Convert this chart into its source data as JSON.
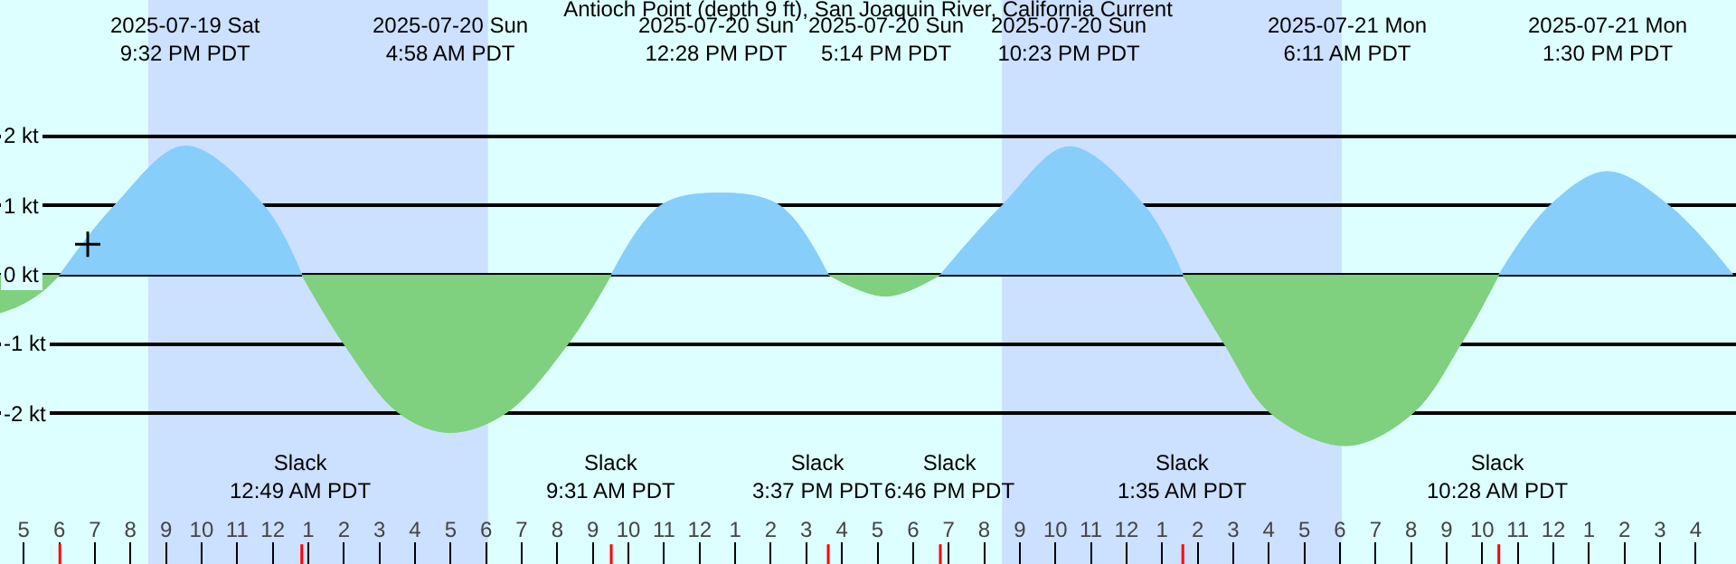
{
  "chart_data": {
    "type": "area",
    "title": "Antioch Point (depth 9 ft), San Joaquin River, California Current",
    "xlim": [
      "2025-07-19T16:20",
      "2025-07-21T17:08"
    ],
    "ylim": [
      -4.18,
      3.97
    ],
    "xticks": [
      {
        "value": "2025-07-19T17:00",
        "label": "5"
      },
      {
        "value": "2025-07-19T18:00",
        "label": "6"
      },
      {
        "value": "2025-07-19T19:00",
        "label": "7"
      },
      {
        "value": "2025-07-19T20:00",
        "label": "8"
      },
      {
        "value": "2025-07-19T21:00",
        "label": "9"
      },
      {
        "value": "2025-07-19T22:00",
        "label": "10"
      },
      {
        "value": "2025-07-19T23:00",
        "label": "11"
      },
      {
        "value": "2025-07-20T00:00",
        "label": "12"
      },
      {
        "value": "2025-07-20T01:00",
        "label": "1"
      },
      {
        "value": "2025-07-20T02:00",
        "label": "2"
      },
      {
        "value": "2025-07-20T03:00",
        "label": "3"
      },
      {
        "value": "2025-07-20T04:00",
        "label": "4"
      },
      {
        "value": "2025-07-20T05:00",
        "label": "5"
      },
      {
        "value": "2025-07-20T06:00",
        "label": "6"
      },
      {
        "value": "2025-07-20T07:00",
        "label": "7"
      },
      {
        "value": "2025-07-20T08:00",
        "label": "8"
      },
      {
        "value": "2025-07-20T09:00",
        "label": "9"
      },
      {
        "value": "2025-07-20T10:00",
        "label": "10"
      },
      {
        "value": "2025-07-20T11:00",
        "label": "11"
      },
      {
        "value": "2025-07-20T12:00",
        "label": "12"
      },
      {
        "value": "2025-07-20T13:00",
        "label": "1"
      },
      {
        "value": "2025-07-20T14:00",
        "label": "2"
      },
      {
        "value": "2025-07-20T15:00",
        "label": "3"
      },
      {
        "value": "2025-07-20T16:00",
        "label": "4"
      },
      {
        "value": "2025-07-20T17:00",
        "label": "5"
      },
      {
        "value": "2025-07-20T18:00",
        "label": "6"
      },
      {
        "value": "2025-07-20T19:00",
        "label": "7"
      },
      {
        "value": "2025-07-20T20:00",
        "label": "8"
      },
      {
        "value": "2025-07-20T21:00",
        "label": "9"
      },
      {
        "value": "2025-07-20T22:00",
        "label": "10"
      },
      {
        "value": "2025-07-20T23:00",
        "label": "11"
      },
      {
        "value": "2025-07-21T00:00",
        "label": "12"
      },
      {
        "value": "2025-07-21T01:00",
        "label": "1"
      },
      {
        "value": "2025-07-21T02:00",
        "label": "2"
      },
      {
        "value": "2025-07-21T03:00",
        "label": "3"
      },
      {
        "value": "2025-07-21T04:00",
        "label": "4"
      },
      {
        "value": "2025-07-21T05:00",
        "label": "5"
      },
      {
        "value": "2025-07-21T06:00",
        "label": "6"
      },
      {
        "value": "2025-07-21T07:00",
        "label": "7"
      },
      {
        "value": "2025-07-21T08:00",
        "label": "8"
      },
      {
        "value": "2025-07-21T09:00",
        "label": "9"
      },
      {
        "value": "2025-07-21T10:00",
        "label": "10"
      },
      {
        "value": "2025-07-21T11:00",
        "label": "11"
      },
      {
        "value": "2025-07-21T12:00",
        "label": "12"
      },
      {
        "value": "2025-07-21T13:00",
        "label": "1"
      },
      {
        "value": "2025-07-21T14:00",
        "label": "2"
      },
      {
        "value": "2025-07-21T15:00",
        "label": "3"
      },
      {
        "value": "2025-07-21T16:00",
        "label": "4"
      }
    ],
    "yticks": [
      {
        "value": -2,
        "label": "-2 kt"
      },
      {
        "value": -1,
        "label": "-1 kt"
      },
      {
        "value": 0,
        "label": "0 kt"
      },
      {
        "value": 1,
        "label": "1 kt"
      },
      {
        "value": 2,
        "label": "2 kt"
      }
    ],
    "grid": "y",
    "bands": [
      {
        "axis": "x",
        "from": "2025-07-19T20:30",
        "to": "2025-07-20T06:03",
        "color": "#cce0ff"
      },
      {
        "axis": "x",
        "from": "2025-07-20T20:30",
        "to": "2025-07-21T06:03",
        "color": "#cce0ff"
      }
    ],
    "series": [
      {
        "color": "#7fd07f",
        "x": [
          "2025-07-19T16:20",
          "2025-07-19T16:54",
          "2025-07-19T17:30",
          "2025-07-19T18:01"
        ],
        "values": [
          -0.55,
          -0.44,
          -0.25,
          0
        ]
      },
      {
        "color": "#87cefa",
        "x": [
          "2025-07-19T18:01",
          "2025-07-19T19:33",
          "2025-07-19T21:32",
          "2025-07-19T23:45",
          "2025-07-20T00:49"
        ],
        "values": [
          0,
          1.0,
          1.86,
          1.0,
          0
        ]
      },
      {
        "color": "#7fd07f",
        "x": [
          "2025-07-20T00:49",
          "2025-07-20T02:00",
          "2025-07-20T03:33",
          "2025-07-20T04:58",
          "2025-07-20T06:33",
          "2025-07-20T08:18",
          "2025-07-20T09:31"
        ],
        "values": [
          0,
          -1.0,
          -2.0,
          -2.28,
          -2.0,
          -1.0,
          0
        ]
      },
      {
        "color": "#87cefa",
        "x": [
          "2025-07-20T09:31",
          "2025-07-20T10:54",
          "2025-07-20T12:28",
          "2025-07-20T14:15",
          "2025-07-20T15:37"
        ],
        "values": [
          0,
          1.0,
          1.18,
          1.0,
          0
        ]
      },
      {
        "color": "#7fd07f",
        "x": [
          "2025-07-20T15:37",
          "2025-07-20T17:14",
          "2025-07-20T18:46"
        ],
        "values": [
          0,
          -0.31,
          0
        ]
      },
      {
        "color": "#87cefa",
        "x": [
          "2025-07-20T18:46",
          "2025-07-20T20:30",
          "2025-07-20T22:23",
          "2025-07-21T00:30",
          "2025-07-21T01:35"
        ],
        "values": [
          0,
          1.0,
          1.85,
          1.0,
          0
        ]
      },
      {
        "color": "#7fd07f",
        "x": [
          "2025-07-21T01:35",
          "2025-07-21T02:45",
          "2025-07-21T04:03",
          "2025-07-21T06:11",
          "2025-07-21T08:03",
          "2025-07-21T09:24",
          "2025-07-21T10:28"
        ],
        "values": [
          0,
          -1.0,
          -2.0,
          -2.47,
          -2.0,
          -1.0,
          0
        ]
      },
      {
        "color": "#87cefa",
        "x": [
          "2025-07-21T10:28",
          "2025-07-21T11:54",
          "2025-07-21T13:30",
          "2025-07-21T15:15",
          "2025-07-21T17:03"
        ],
        "values": [
          0,
          1.0,
          1.49,
          1.0,
          0
        ]
      },
      {
        "type": "scatter",
        "marker": "cross",
        "color": "#000000",
        "x": [
          "2025-07-19T18:48"
        ],
        "values": [
          0.44
        ]
      }
    ],
    "annotations": [
      "2025-07-19 Sat\n9:32 PM PDT",
      "2025-07-20 Sun\n4:58 AM PDT",
      "2025-07-20 Sun\n12:28 PM PDT",
      "2025-07-20 Sun\n5:14 PM PDT",
      "2025-07-20 Sun\n10:23 PM PDT",
      "2025-07-21 Mon\n6:11 AM PDT",
      "2025-07-21 Mon\n1:30 PM PDT",
      "Slack\n12:49 AM PDT",
      "Slack\n9:31 AM PDT",
      "Slack\n3:37 PM PDT",
      "Slack\n6:46 PM PDT",
      "Slack\n1:35 AM PDT",
      "Slack\n10:28 AM PDT"
    ]
  }
}
